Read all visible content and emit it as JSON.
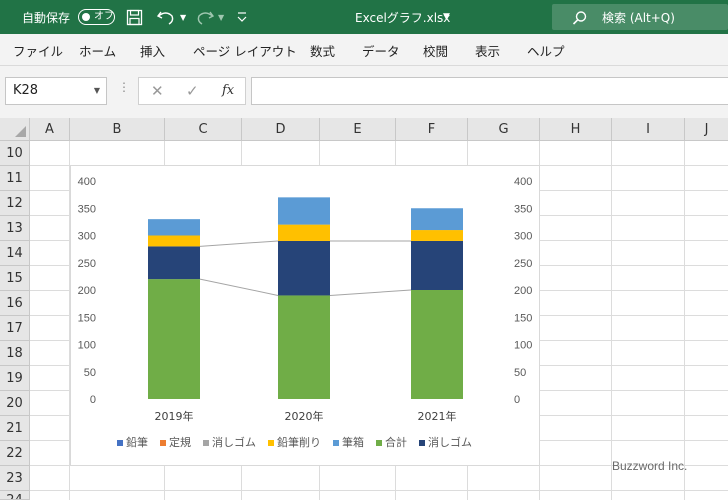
{
  "titlebar": {
    "autosave_label": "自動保存",
    "autosave_state": "オフ",
    "filename": "Excelグラフ.xlsx",
    "filename_dropdown": "⌄",
    "search_placeholder": "検索 (Alt+Q)"
  },
  "ribbon": {
    "tabs": [
      "ファイル",
      "ホーム",
      "挿入",
      "ページ レイアウト",
      "数式",
      "データ",
      "校閲",
      "表示",
      "ヘルプ"
    ]
  },
  "formula_bar": {
    "namebox_value": "K28",
    "fx_label": "fx",
    "cancel_glyph": "✕",
    "enter_glyph": "✓",
    "formula_value": ""
  },
  "sheet": {
    "columns": [
      "A",
      "B",
      "C",
      "D",
      "E",
      "F",
      "G",
      "H",
      "I",
      "J"
    ],
    "rows": [
      "10",
      "11",
      "12",
      "13",
      "14",
      "15",
      "16",
      "17",
      "18",
      "19",
      "20",
      "21",
      "22",
      "23",
      "24"
    ]
  },
  "chart_data": {
    "type": "bar",
    "stacked": true,
    "categories": [
      "2019年",
      "2020年",
      "2021年"
    ],
    "ylim": [
      0,
      400
    ],
    "yticks": [
      0,
      50,
      100,
      150,
      200,
      250,
      300,
      350,
      400
    ],
    "y2lim": [
      0,
      400
    ],
    "y2ticks": [
      0,
      50,
      100,
      150,
      200,
      250,
      300,
      350,
      400
    ],
    "grid": false,
    "legend": "bottom",
    "series": [
      {
        "name": "合計",
        "values": [
          220,
          190,
          200
        ],
        "color": "#70ad47"
      },
      {
        "name": "消しゴム",
        "values": [
          60,
          100,
          90
        ],
        "color": "#264478"
      },
      {
        "name": "鉛筆削り",
        "values": [
          20,
          30,
          20
        ],
        "color": "#ffc000"
      },
      {
        "name": "筆箱",
        "values": [
          30,
          50,
          40
        ],
        "color": "#5b9bd5"
      }
    ],
    "connector_lines": {
      "color": "#a5a5a5"
    },
    "legend_entries": [
      {
        "name": "鉛筆",
        "color": "#4472c4"
      },
      {
        "name": "定規",
        "color": "#ed7d31"
      },
      {
        "name": "消しゴム",
        "color": "#a5a5a5"
      },
      {
        "name": "鉛筆削り",
        "color": "#ffc000"
      },
      {
        "name": "筆箱",
        "color": "#5b9bd5"
      },
      {
        "name": "合計",
        "color": "#70ad47"
      },
      {
        "name": "消しゴム",
        "color": "#264478"
      }
    ]
  },
  "watermark": "Buzzword Inc."
}
